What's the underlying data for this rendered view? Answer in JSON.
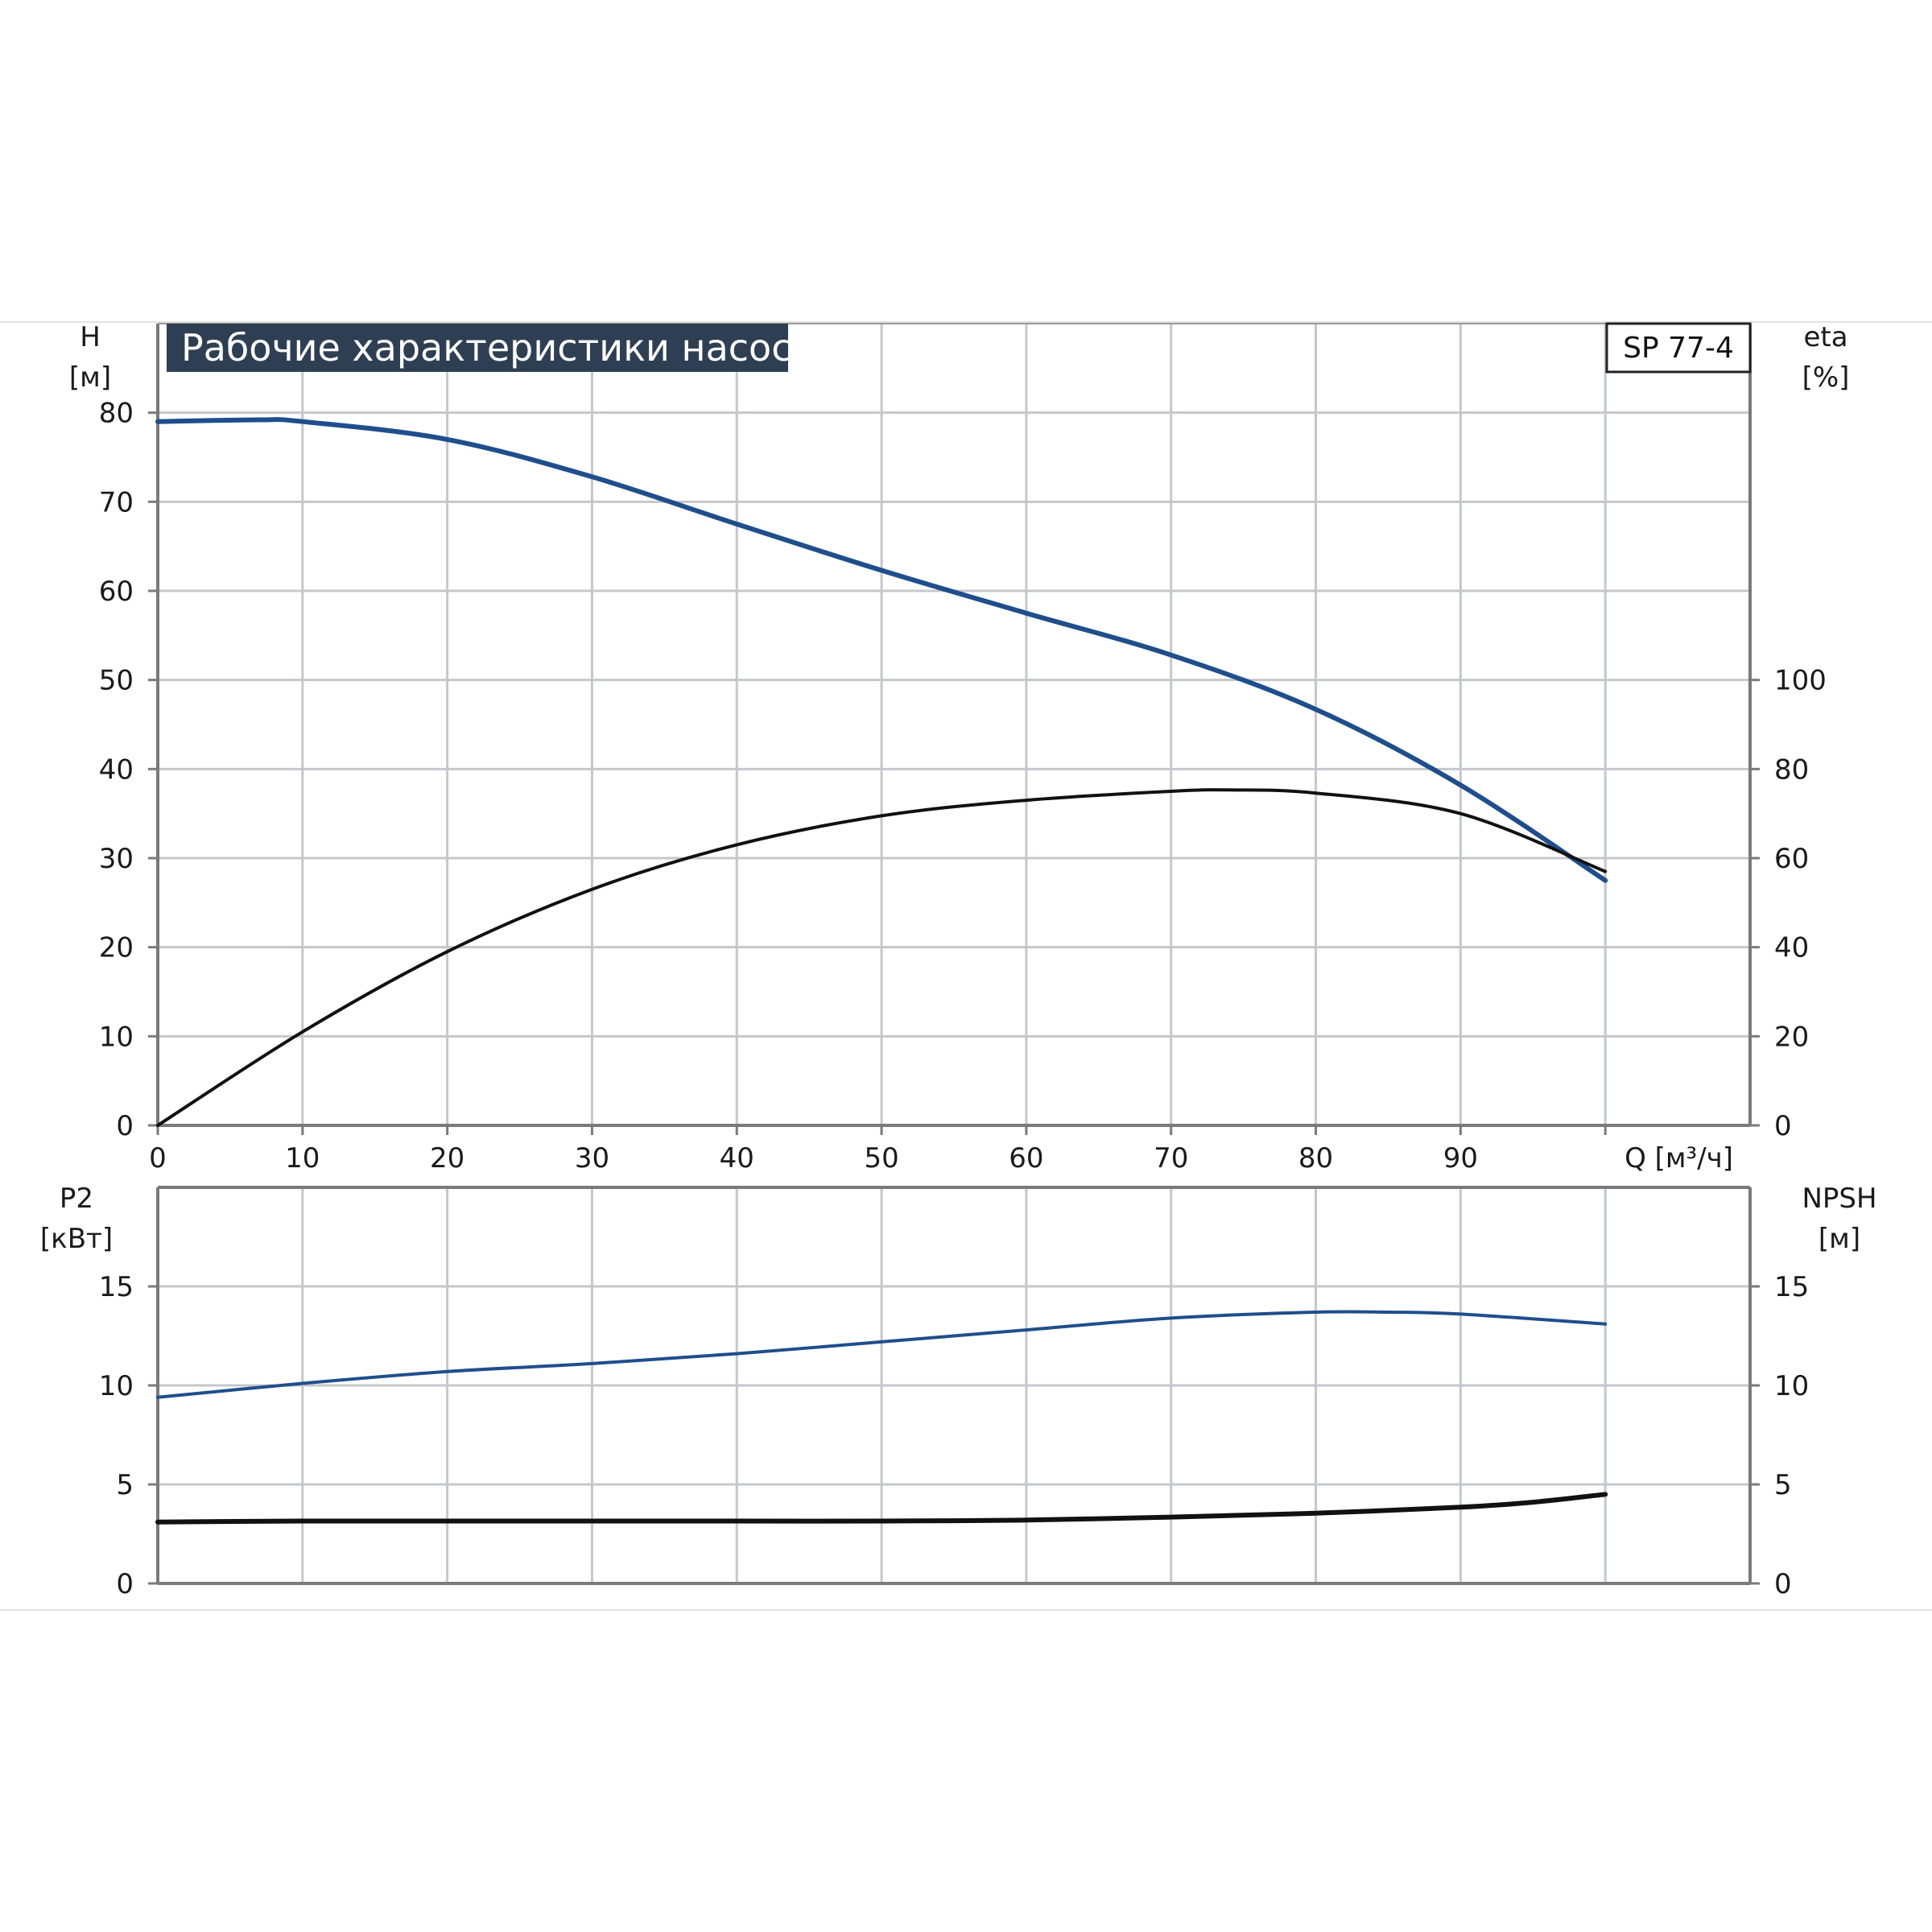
{
  "colors": {
    "blue": "#1f4e8c",
    "black": "#111111",
    "grid": "#c4c8cc",
    "title_bg": "#2f3f53"
  },
  "chart_data": [
    {
      "type": "line",
      "title": "Рабочие характеристики насоса",
      "model": "SP 77-4",
      "left_axis_label": [
        "H",
        "[м]"
      ],
      "right_axis_label": [
        "eta",
        "[%]"
      ],
      "x_axis_label": "Q [м³/ч]",
      "xlim": [
        0,
        110
      ],
      "x_ticks": [
        0,
        10,
        20,
        30,
        40,
        50,
        60,
        70,
        80,
        90
      ],
      "left_ylim": [
        0,
        90
      ],
      "left_ticks": [
        0,
        10,
        20,
        30,
        40,
        50,
        60,
        70,
        80
      ],
      "right_ylim": [
        0,
        180
      ],
      "right_ticks": [
        0,
        20,
        40,
        60,
        80,
        100
      ],
      "grid": true,
      "series": [
        {
          "axis": "left",
          "color": "blue",
          "x": [
            0,
            7,
            10,
            20,
            30,
            40,
            50,
            60,
            70,
            80,
            90,
            100
          ],
          "y": [
            79,
            79.2,
            79,
            77,
            72.8,
            67.5,
            62.3,
            57.5,
            52.8,
            46.7,
            38.2,
            27.5
          ]
        },
        {
          "axis": "right",
          "color": "black",
          "x": [
            0,
            10,
            20,
            30,
            40,
            50,
            60,
            70,
            74,
            80,
            90,
            100
          ],
          "y": [
            0,
            21,
            39,
            53,
            63,
            69.5,
            73,
            75,
            75.3,
            74.6,
            70,
            57
          ]
        }
      ]
    },
    {
      "type": "line",
      "left_axis_label": [
        "P2",
        "[кВт]"
      ],
      "right_axis_label": [
        "NPSH",
        "[м]"
      ],
      "xlim": [
        0,
        110
      ],
      "left_ylim": [
        0,
        20
      ],
      "left_ticks": [
        0,
        5,
        10,
        15
      ],
      "right_ylim": [
        0,
        20
      ],
      "right_ticks": [
        0,
        5,
        10,
        15
      ],
      "grid": true,
      "series": [
        {
          "axis": "left",
          "color": "blue",
          "x": [
            0,
            10,
            20,
            30,
            40,
            50,
            60,
            70,
            80,
            85,
            90,
            100
          ],
          "y": [
            9.4,
            10.1,
            10.7,
            11.1,
            11.6,
            12.2,
            12.8,
            13.4,
            13.7,
            13.7,
            13.6,
            13.1
          ]
        },
        {
          "axis": "right",
          "color": "black",
          "x": [
            0,
            10,
            20,
            30,
            40,
            50,
            60,
            70,
            80,
            90,
            95,
            100
          ],
          "y": [
            3.1,
            3.15,
            3.15,
            3.15,
            3.15,
            3.15,
            3.2,
            3.35,
            3.55,
            3.85,
            4.1,
            4.5
          ]
        }
      ]
    }
  ]
}
